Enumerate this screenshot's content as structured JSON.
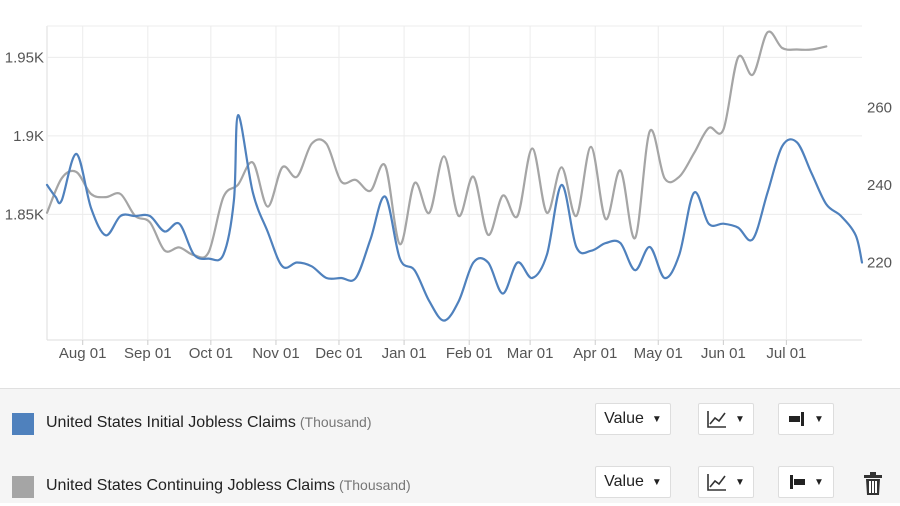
{
  "chart_data": {
    "type": "line",
    "x_labels": [
      "Aug 01",
      "Sep 01",
      "Oct 01",
      "Nov 01",
      "Dec 01",
      "Jan 01",
      "Feb 01",
      "Mar 01",
      "Apr 01",
      "May 01",
      "Jun 01",
      "Jul 01"
    ],
    "left_axis": {
      "ticks": [
        "1.85K",
        "1.9K",
        "1.95K"
      ],
      "range": [
        1.77,
        1.97
      ]
    },
    "right_axis": {
      "ticks": [
        "220",
        "240",
        "260"
      ],
      "range": [
        200,
        281
      ]
    },
    "grid": true,
    "series": [
      {
        "name": "United States Initial Jobless Claims",
        "axis": "right",
        "color": "#4f81bd",
        "points": [
          [
            "2023-07-15",
            240
          ],
          [
            "2023-07-19",
            237
          ],
          [
            "2023-07-22",
            236
          ],
          [
            "2023-07-29",
            248
          ],
          [
            "2023-08-05",
            234
          ],
          [
            "2023-08-12",
            227
          ],
          [
            "2023-08-19",
            232
          ],
          [
            "2023-08-26",
            232
          ],
          [
            "2023-09-02",
            232
          ],
          [
            "2023-09-09",
            228
          ],
          [
            "2023-09-16",
            230
          ],
          [
            "2023-09-23",
            222
          ],
          [
            "2023-09-30",
            221
          ],
          [
            "2023-10-07",
            222
          ],
          [
            "2023-10-12",
            236
          ],
          [
            "2023-10-14",
            258
          ],
          [
            "2023-10-21",
            238
          ],
          [
            "2023-10-28",
            228
          ],
          [
            "2023-11-04",
            219
          ],
          [
            "2023-11-11",
            220
          ],
          [
            "2023-11-18",
            219
          ],
          [
            "2023-11-25",
            216
          ],
          [
            "2023-12-02",
            216
          ],
          [
            "2023-12-09",
            216
          ],
          [
            "2023-12-16",
            226
          ],
          [
            "2023-12-23",
            237
          ],
          [
            "2023-12-30",
            221
          ],
          [
            "2024-01-06",
            218
          ],
          [
            "2024-01-13",
            210
          ],
          [
            "2024-01-20",
            205
          ],
          [
            "2024-01-27",
            210
          ],
          [
            "2024-02-03",
            220
          ],
          [
            "2024-02-10",
            220
          ],
          [
            "2024-02-17",
            212
          ],
          [
            "2024-02-24",
            220
          ],
          [
            "2024-03-02",
            216
          ],
          [
            "2024-03-09",
            222
          ],
          [
            "2024-03-16",
            240
          ],
          [
            "2024-03-23",
            224
          ],
          [
            "2024-03-30",
            223
          ],
          [
            "2024-04-06",
            225
          ],
          [
            "2024-04-13",
            225
          ],
          [
            "2024-04-20",
            218
          ],
          [
            "2024-04-27",
            224
          ],
          [
            "2024-05-04",
            216
          ],
          [
            "2024-05-11",
            222
          ],
          [
            "2024-05-18",
            238
          ],
          [
            "2024-05-25",
            230
          ],
          [
            "2024-06-01",
            230
          ],
          [
            "2024-06-08",
            229
          ],
          [
            "2024-06-15",
            226
          ],
          [
            "2024-06-22",
            238
          ],
          [
            "2024-06-29",
            250
          ],
          [
            "2024-07-06",
            251
          ],
          [
            "2024-07-13",
            243
          ],
          [
            "2024-07-20",
            235
          ],
          [
            "2024-07-27",
            232
          ],
          [
            "2024-08-03",
            227
          ],
          [
            "2024-08-06",
            220
          ]
        ]
      },
      {
        "name": "United States Continuing Jobless Claims",
        "axis": "left",
        "color": "#a5a5a5",
        "points": [
          [
            "2023-07-15",
            1.851
          ],
          [
            "2023-07-22",
            1.873
          ],
          [
            "2023-07-29",
            1.877
          ],
          [
            "2023-08-05",
            1.863
          ],
          [
            "2023-08-12",
            1.861
          ],
          [
            "2023-08-19",
            1.863
          ],
          [
            "2023-08-26",
            1.849
          ],
          [
            "2023-09-02",
            1.845
          ],
          [
            "2023-09-09",
            1.827
          ],
          [
            "2023-09-16",
            1.829
          ],
          [
            "2023-09-23",
            1.824
          ],
          [
            "2023-09-30",
            1.826
          ],
          [
            "2023-10-07",
            1.861
          ],
          [
            "2023-10-14",
            1.869
          ],
          [
            "2023-10-21",
            1.883
          ],
          [
            "2023-10-28",
            1.855
          ],
          [
            "2023-11-04",
            1.88
          ],
          [
            "2023-11-11",
            1.874
          ],
          [
            "2023-11-18",
            1.895
          ],
          [
            "2023-11-25",
            1.895
          ],
          [
            "2023-12-02",
            1.871
          ],
          [
            "2023-12-09",
            1.872
          ],
          [
            "2023-12-16",
            1.865
          ],
          [
            "2023-12-23",
            1.881
          ],
          [
            "2023-12-30",
            1.831
          ],
          [
            "2024-01-06",
            1.87
          ],
          [
            "2024-01-13",
            1.851
          ],
          [
            "2024-01-20",
            1.887
          ],
          [
            "2024-01-27",
            1.849
          ],
          [
            "2024-02-03",
            1.874
          ],
          [
            "2024-02-10",
            1.837
          ],
          [
            "2024-02-17",
            1.862
          ],
          [
            "2024-02-24",
            1.849
          ],
          [
            "2024-03-02",
            1.892
          ],
          [
            "2024-03-09",
            1.851
          ],
          [
            "2024-03-16",
            1.88
          ],
          [
            "2024-03-23",
            1.849
          ],
          [
            "2024-03-30",
            1.893
          ],
          [
            "2024-04-06",
            1.847
          ],
          [
            "2024-04-13",
            1.878
          ],
          [
            "2024-04-20",
            1.835
          ],
          [
            "2024-04-27",
            1.903
          ],
          [
            "2024-05-04",
            1.873
          ],
          [
            "2024-05-11",
            1.874
          ],
          [
            "2024-05-18",
            1.889
          ],
          [
            "2024-05-25",
            1.905
          ],
          [
            "2024-06-01",
            1.904
          ],
          [
            "2024-06-08",
            1.95
          ],
          [
            "2024-06-15",
            1.939
          ],
          [
            "2024-06-22",
            1.966
          ],
          [
            "2024-06-29",
            1.956
          ],
          [
            "2024-07-06",
            1.955
          ],
          [
            "2024-07-13",
            1.955
          ],
          [
            "2024-07-20",
            1.957
          ]
        ]
      }
    ]
  },
  "legend": [
    {
      "label": "United States Initial Jobless Claims",
      "unit": "(Thousand)",
      "color": "#4f81bd",
      "value_label": "Value",
      "type_icon": "line-chart-icon",
      "axis_icon": "right-axis-icon"
    },
    {
      "label": "United States Continuing Jobless Claims",
      "unit": "(Thousand)",
      "color": "#a5a5a5",
      "value_label": "Value",
      "type_icon": "line-chart-icon",
      "axis_icon": "left-axis-icon",
      "delete_icon": "trash-icon"
    }
  ]
}
